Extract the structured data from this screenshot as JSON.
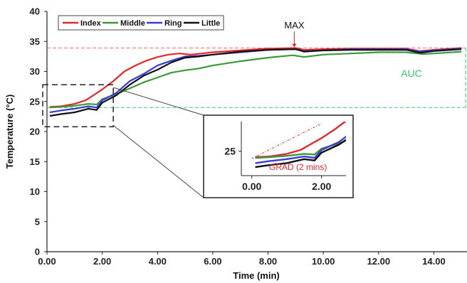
{
  "chart_data": {
    "type": "line",
    "xlabel": "Time (min)",
    "ylabel": "Temperature (°C)",
    "xlim": [
      0,
      15.2
    ],
    "ylim": [
      0,
      40
    ],
    "xticks": [
      0,
      2,
      4,
      6,
      8,
      10,
      12,
      14
    ],
    "xtick_labels": [
      "0.00",
      "2.00",
      "4.00",
      "6.00",
      "8.00",
      "10.00",
      "12.00",
      "14.00"
    ],
    "yticks": [
      0,
      5,
      10,
      15,
      20,
      25,
      30,
      35,
      40
    ],
    "ytick_labels": [
      "0",
      "5",
      "10",
      "15",
      "20",
      "25",
      "30",
      "35",
      "40"
    ],
    "grid": false,
    "legend_position": "top-left",
    "colors": {
      "Index": "#e8262a",
      "Middle": "#3a9a3a",
      "Ring": "#3b3bd6",
      "Little": "#111111"
    },
    "series": [
      {
        "name": "Index",
        "x": [
          0.1,
          0.5,
          1.0,
          1.4,
          1.7,
          2.0,
          2.4,
          2.8,
          3.2,
          3.6,
          4.0,
          4.4,
          4.8,
          5.2,
          5.6,
          6.0,
          7.0,
          8.0,
          9.0,
          9.3,
          10.0,
          11.0,
          12.0,
          13.0,
          13.5,
          14.0,
          15.0
        ],
        "y": [
          24.1,
          24.2,
          24.6,
          25.2,
          26.1,
          27.0,
          28.4,
          30.0,
          31.0,
          31.8,
          32.4,
          32.8,
          33.0,
          32.8,
          33.0,
          33.2,
          33.5,
          33.8,
          33.9,
          33.6,
          33.7,
          33.8,
          33.8,
          33.8,
          33.4,
          33.6,
          33.9
        ]
      },
      {
        "name": "Middle",
        "x": [
          0.1,
          0.5,
          1.0,
          1.5,
          1.8,
          2.0,
          2.5,
          3.0,
          3.5,
          4.0,
          4.5,
          5.0,
          5.5,
          6.0,
          7.0,
          8.0,
          8.9,
          9.3,
          10.0,
          11.0,
          12.0,
          13.0,
          13.6,
          14.0,
          15.0
        ],
        "y": [
          24.0,
          24.1,
          24.3,
          24.6,
          24.5,
          25.4,
          26.2,
          27.2,
          28.2,
          29.0,
          29.8,
          30.2,
          30.5,
          31.0,
          31.7,
          32.3,
          32.7,
          32.4,
          32.8,
          33.0,
          33.2,
          33.2,
          32.9,
          33.0,
          33.3
        ]
      },
      {
        "name": "Ring",
        "x": [
          0.1,
          0.5,
          1.0,
          1.5,
          1.8,
          2.0,
          2.5,
          3.0,
          3.5,
          4.0,
          4.5,
          5.0,
          5.5,
          6.0,
          7.0,
          8.0,
          9.0,
          9.3,
          10.0,
          11.0,
          12.0,
          13.0,
          13.5,
          14.0,
          15.0
        ],
        "y": [
          23.2,
          23.5,
          23.8,
          24.2,
          24.0,
          25.2,
          26.4,
          28.4,
          29.6,
          31.0,
          31.8,
          32.5,
          32.6,
          32.8,
          33.2,
          33.6,
          33.7,
          33.4,
          33.5,
          33.7,
          33.7,
          33.7,
          33.3,
          33.5,
          33.8
        ]
      },
      {
        "name": "Little",
        "x": [
          0.1,
          0.5,
          1.0,
          1.5,
          1.8,
          2.0,
          2.5,
          3.0,
          3.5,
          4.0,
          4.5,
          5.0,
          5.5,
          6.0,
          7.0,
          8.0,
          9.0,
          9.3,
          10.0,
          11.0,
          12.0,
          13.0,
          13.5,
          14.0,
          15.0
        ],
        "y": [
          22.6,
          22.9,
          23.2,
          23.8,
          23.6,
          24.8,
          26.0,
          27.8,
          29.3,
          30.3,
          31.5,
          32.3,
          32.5,
          32.8,
          33.3,
          33.6,
          33.7,
          33.3,
          33.5,
          33.6,
          33.6,
          33.6,
          33.1,
          33.4,
          33.7
        ]
      }
    ],
    "annotations": {
      "max": {
        "label": "MAX",
        "x": 8.95,
        "y": 33.9,
        "color": "#e8262a"
      },
      "max_line_y": 33.9,
      "auc": {
        "label": "AUC",
        "color": "#33cc66",
        "baseline_y": 24.0,
        "top_y": 33.9
      },
      "zoom_region": {
        "x0": 0.0,
        "x1": 2.4,
        "y0": 20.8,
        "y1": 27.8
      },
      "inset": {
        "xlim": [
          -0.3,
          2.7
        ],
        "ylim": [
          21.3,
          29.5
        ],
        "yticks": [
          25
        ],
        "ytick_labels": [
          "25"
        ],
        "xticks": [
          0,
          2
        ],
        "xtick_labels": [
          "0.00",
          "2.00"
        ],
        "grad_label": "GRAD (2 mins)",
        "grad_color": "#e8262a",
        "grad_line": {
          "x0": 0.0,
          "y0": 23.9,
          "x1": 2.0,
          "y1": 29.2
        }
      }
    }
  }
}
